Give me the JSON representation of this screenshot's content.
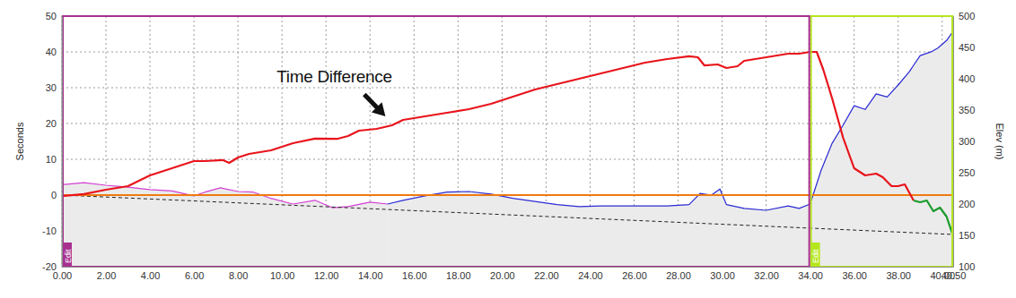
{
  "chart_data": {
    "type": "line",
    "ylabel": "Seconds",
    "y2label": "Elev (m)",
    "grid": true,
    "xlim": [
      0,
      40.5
    ],
    "xticks": [
      {
        "value": 0,
        "label": "0.00"
      },
      {
        "value": 2,
        "label": "2.00"
      },
      {
        "value": 4,
        "label": "4.00"
      },
      {
        "value": 6,
        "label": "6.00"
      },
      {
        "value": 8,
        "label": "8.00"
      },
      {
        "value": 10,
        "label": "10.00"
      },
      {
        "value": 12,
        "label": "12.00"
      },
      {
        "value": 14,
        "label": "14.00"
      },
      {
        "value": 16,
        "label": "16.00"
      },
      {
        "value": 18,
        "label": "18.00"
      },
      {
        "value": 20,
        "label": "20.00"
      },
      {
        "value": 22,
        "label": "22.00"
      },
      {
        "value": 24,
        "label": "24.00"
      },
      {
        "value": 26,
        "label": "26.00"
      },
      {
        "value": 28,
        "label": "28.00"
      },
      {
        "value": 30,
        "label": "30.00"
      },
      {
        "value": 32,
        "label": "32.00"
      },
      {
        "value": 34,
        "label": "34.00"
      },
      {
        "value": 36,
        "label": "36.00"
      },
      {
        "value": 38,
        "label": "38.00"
      },
      {
        "value": 40,
        "label": "40.00"
      },
      {
        "value": 40.5,
        "label": "40.50"
      }
    ],
    "ylim": [
      -20,
      50
    ],
    "yticks": [
      -20,
      -10,
      0,
      10,
      20,
      30,
      40,
      50
    ],
    "y2lim": [
      100,
      500
    ],
    "y2ticks": [
      100,
      150,
      200,
      250,
      300,
      350,
      400,
      450,
      500
    ],
    "series": [
      {
        "type": "area",
        "axis": "y2",
        "color": "#d23fd2",
        "x": [
          0,
          1,
          2,
          3,
          4,
          5,
          6,
          6.5,
          7.2,
          8,
          8.7,
          9.5,
          10.5,
          11.5,
          12.3,
          13,
          14,
          14.8
        ],
        "values": [
          231,
          234,
          230,
          227,
          223,
          221,
          213,
          219,
          226,
          220,
          219,
          209,
          200,
          206,
          194,
          196,
          203,
          200
        ]
      },
      {
        "type": "area",
        "axis": "y2",
        "color": "#2a2ad4",
        "x": [
          14.8,
          15.5,
          16.5,
          17.5,
          18.5,
          19.5,
          20.5,
          21.5,
          22.5,
          23.5,
          24.5,
          26,
          27.5,
          28.5,
          29,
          29.5,
          29.9,
          30.2,
          31,
          32,
          33,
          33.5,
          34,
          34.5,
          35,
          35.5,
          36,
          36.5,
          37,
          37.5,
          38,
          38.5,
          39,
          39.5,
          39.8,
          40.2,
          40.5
        ],
        "values": [
          200,
          206,
          213,
          219,
          220,
          216,
          209,
          204,
          199,
          196,
          197,
          197,
          197,
          199,
          217,
          214,
          224,
          199,
          193,
          190,
          197,
          193,
          200,
          254,
          297,
          326,
          357,
          351,
          376,
          371,
          390,
          411,
          437,
          443,
          449,
          461,
          476
        ]
      },
      {
        "type": "line",
        "color": "#222222",
        "line_style": "dashed",
        "x": [
          0,
          40.5
        ],
        "values": [
          0,
          -11
        ]
      },
      {
        "type": "line",
        "color": "#f07a10",
        "x": [
          0,
          40.5
        ],
        "values": [
          0,
          0
        ]
      },
      {
        "type": "line",
        "color": "#e8141b",
        "x": [
          0,
          1,
          2,
          3,
          4,
          5,
          6,
          6.5,
          7.3,
          7.6,
          8,
          8.5,
          9.5,
          10.5,
          11.5,
          12.5,
          13,
          13.5,
          14.3,
          15,
          15.5,
          16.5,
          17.5,
          18.5,
          19.5,
          20.5,
          21.5,
          22.5,
          23.5,
          24.5,
          25.5,
          26.5,
          27.5,
          28.5,
          28.9,
          29.2,
          29.8,
          30.2,
          30.7,
          31,
          32,
          33,
          33.5,
          34,
          34.3,
          34.6,
          35,
          35.5,
          36,
          36.5,
          37,
          37.3,
          37.7,
          38,
          38.3,
          38.7
        ],
        "values": [
          -0.3,
          0.3,
          1.5,
          2.5,
          5.5,
          7.5,
          9.5,
          9.5,
          9.8,
          9,
          10.5,
          11.5,
          12.5,
          14.5,
          15.8,
          15.7,
          16.5,
          18,
          18.5,
          19.5,
          21,
          22,
          23,
          24,
          25.5,
          27.5,
          29.5,
          31,
          32.5,
          34,
          35.5,
          37,
          38,
          38.8,
          38.5,
          36.2,
          36.5,
          35.5,
          36,
          37.5,
          38.5,
          39.5,
          39.5,
          40,
          40,
          35,
          27,
          16,
          7.5,
          5.5,
          6,
          5,
          2.5,
          2.5,
          3,
          -1.5
        ]
      },
      {
        "type": "line",
        "color": "#1a9a2a",
        "x": [
          38.7,
          39,
          39.3,
          39.6,
          39.9,
          40.2,
          40.5
        ],
        "values": [
          -1.5,
          -2,
          -1.5,
          -4.5,
          -3.5,
          -6,
          -11.5
        ]
      }
    ],
    "segments": [
      {
        "start": 0,
        "end": 34,
        "label": "Edit",
        "color": "#a8308f"
      },
      {
        "start": 34,
        "end": 40.5,
        "label": "Edit",
        "color": "#b5e61d"
      }
    ],
    "annotations": [
      {
        "text": "Time Difference",
        "x": 14.7,
        "y": 22
      }
    ]
  }
}
